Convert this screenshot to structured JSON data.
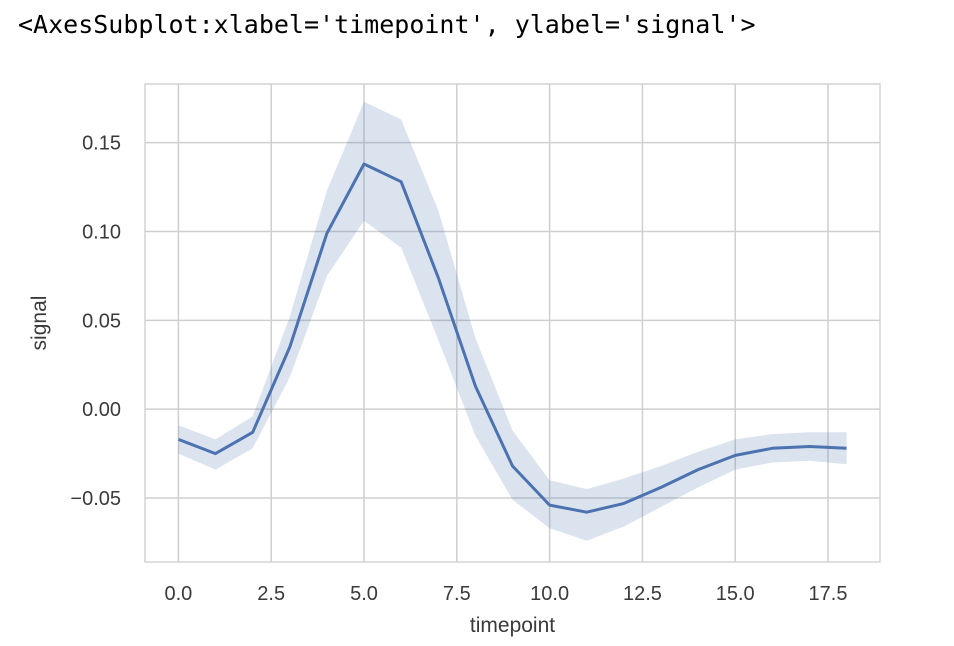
{
  "repr_text": "<AxesSubplot:xlabel='timepoint', ylabel='signal'>",
  "colors": {
    "line": "#4c72b0",
    "band": "#4c72b0",
    "grid": "#cfcfcf",
    "frame": "#d4d4d4",
    "text": "#3a3a3a"
  },
  "chart_data": {
    "type": "line",
    "title": "",
    "xlabel": "timepoint",
    "ylabel": "signal",
    "xlim": [
      -0.9,
      18.9
    ],
    "ylim": [
      -0.086,
      0.183
    ],
    "grid": true,
    "x_ticks": [
      0,
      2.5,
      5,
      7.5,
      10,
      12.5,
      15,
      17.5
    ],
    "x_tick_labels": [
      "0.0",
      "2.5",
      "5.0",
      "7.5",
      "10.0",
      "12.5",
      "15.0",
      "17.5"
    ],
    "y_ticks": [
      -0.05,
      0,
      0.05,
      0.1,
      0.15
    ],
    "y_tick_labels": [
      "−0.05",
      "0.00",
      "0.05",
      "0.10",
      "0.15"
    ],
    "series": [
      {
        "x": [
          0,
          1,
          2,
          3,
          4,
          5,
          6,
          7,
          8,
          9,
          10,
          11,
          12,
          13,
          14,
          15,
          16,
          17,
          18
        ],
        "y": [
          -0.017,
          -0.025,
          -0.013,
          0.035,
          0.099,
          0.138,
          0.128,
          0.074,
          0.013,
          -0.032,
          -0.054,
          -0.058,
          -0.053,
          -0.044,
          -0.034,
          -0.026,
          -0.022,
          -0.021,
          -0.022
        ],
        "ci_low": [
          -0.025,
          -0.034,
          -0.022,
          0.018,
          0.075,
          0.106,
          0.091,
          0.039,
          -0.015,
          -0.051,
          -0.067,
          -0.074,
          -0.066,
          -0.055,
          -0.044,
          -0.034,
          -0.03,
          -0.029,
          -0.031
        ],
        "ci_high": [
          -0.009,
          -0.017,
          -0.004,
          0.052,
          0.123,
          0.173,
          0.163,
          0.112,
          0.04,
          -0.012,
          -0.04,
          -0.045,
          -0.039,
          -0.032,
          -0.024,
          -0.017,
          -0.014,
          -0.013,
          -0.013
        ]
      }
    ]
  }
}
